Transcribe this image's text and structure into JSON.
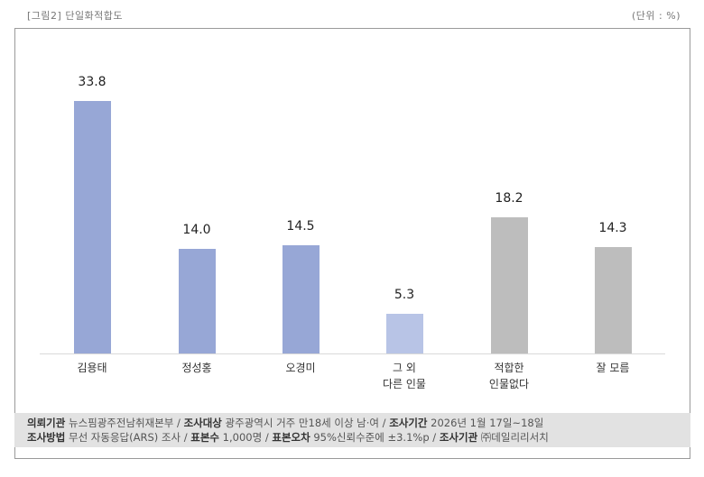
{
  "header": {
    "figure_title": "[그림2] 단일화적합도",
    "unit": "(단위 : %)"
  },
  "chart_data": {
    "type": "bar",
    "title": "[그림2] 단일화적합도",
    "unit": "%",
    "xlabel": "",
    "ylabel": "",
    "grid": false,
    "legend": null,
    "categories": [
      "김용태",
      "정성홍",
      "오경미",
      "그 외\n다른 인물",
      "적합한\n인물없다",
      "잘 모름"
    ],
    "values": [
      33.8,
      14.0,
      14.5,
      5.3,
      18.2,
      14.3
    ],
    "value_labels": [
      "33.8",
      "14.0",
      "14.5",
      "5.3",
      "18.2",
      "14.3"
    ],
    "colors": [
      "#97a7d6",
      "#97a7d6",
      "#97a7d6",
      "#b8c4e6",
      "#bdbdbd",
      "#bdbdbd"
    ],
    "ylim": [
      0,
      35
    ]
  },
  "footer": {
    "line1": [
      {
        "label": "의뢰기관",
        "value": "뉴스핌광주전남취재본부"
      },
      {
        "label": "조사대상",
        "value": "광주광역시 거주 만18세 이상 남·여"
      },
      {
        "label": "조사기간",
        "value": "2026년 1월 17일~18일"
      }
    ],
    "line2": [
      {
        "label": "조사방법",
        "value": "무선 자동응답(ARS) 조사"
      },
      {
        "label": "표본수",
        "value": "1,000명"
      },
      {
        "label": "표본오차",
        "value": "95%신뢰수준에 ±3.1%p"
      },
      {
        "label": "조사기관",
        "value": "㈜데일리리서치"
      }
    ],
    "separator": " / "
  }
}
